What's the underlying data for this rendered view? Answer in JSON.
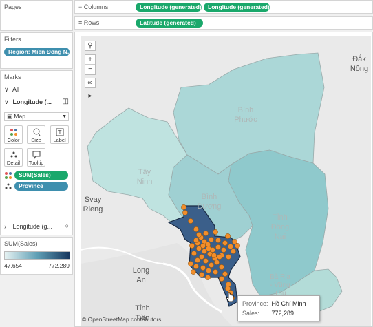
{
  "left": {
    "pages_title": "Pages",
    "filters_title": "Filters",
    "filter_pill": "Region: Miền Đông N..",
    "marks_title": "Marks",
    "all_label": "All",
    "lon_section": "Longitude (...",
    "mark_type": "Map",
    "buttons": {
      "color": "Color",
      "size": "Size",
      "label": "Label",
      "detail": "Detail",
      "tooltip": "Tooltip"
    },
    "pill_sum": "SUM(Sales)",
    "pill_province": "Province",
    "lon_section2": "Longitude (g...",
    "legend_title": "SUM(Sales)",
    "legend_min": "47,654",
    "legend_max": "772,289",
    "legend_colors": [
      "#e6f2f2",
      "#17375e"
    ]
  },
  "shelves": {
    "columns_label": "Columns",
    "columns_pills": [
      "Longitude (generated)",
      "Longitude (generated)"
    ],
    "rows_label": "Rows",
    "rows_pills": [
      "Latitude (generated)"
    ]
  },
  "map": {
    "labels": {
      "binh_phuoc": [
        "Bình",
        "Phước"
      ],
      "tay_ninh": [
        "Tây",
        "Ninh"
      ],
      "binh_duong": [
        "Bình",
        "Dương"
      ],
      "dong_nai": [
        "Tỉnh",
        "Đồng",
        "Nai"
      ],
      "svay_rieng": [
        "Svay",
        "Rieng"
      ],
      "long_an": [
        "Long",
        "An"
      ],
      "ba_ria": [
        "Bà Rịa",
        "- Vũng",
        "Tàu"
      ],
      "tien": [
        "Tỉnh",
        "Tiền"
      ],
      "dak_nong": [
        "Đắk",
        "Nông"
      ]
    },
    "attribution": "© OpenStreetMap contributors",
    "highlight_color": "#f28e2b",
    "selected_fill": "#3b5f8a"
  },
  "tooltip": {
    "province_key": "Province:",
    "province_val": "Hồ Chí Minh",
    "sales_key": "Sales:",
    "sales_val": "772,289"
  }
}
